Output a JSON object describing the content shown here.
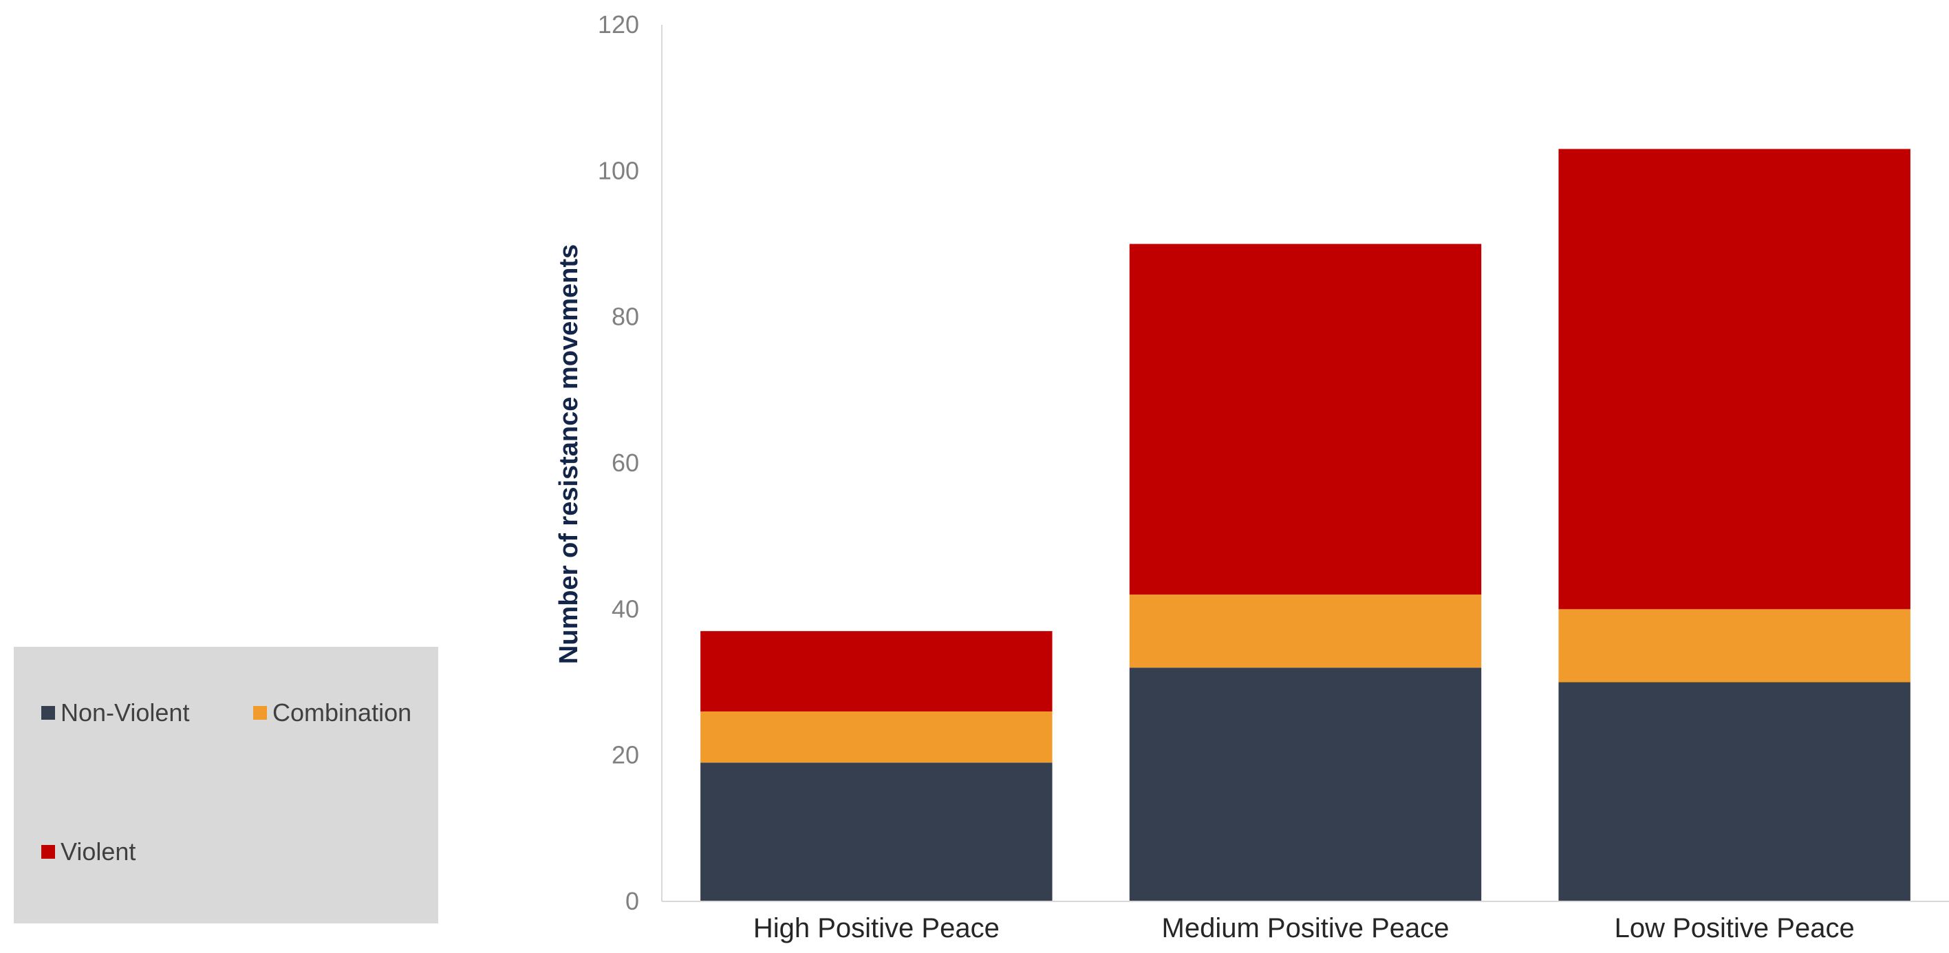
{
  "chart_data": {
    "type": "bar",
    "stacked": true,
    "categories": [
      "High Positive Peace",
      "Medium Positive Peace",
      "Low Positive Peace"
    ],
    "series": [
      {
        "name": "Non-Violent",
        "values": [
          19,
          32,
          30
        ],
        "color": "#353f4f"
      },
      {
        "name": "Combination",
        "values": [
          7,
          10,
          10
        ],
        "color": "#f09b2b"
      },
      {
        "name": "Violent",
        "values": [
          11,
          48,
          63
        ],
        "color": "#c00000"
      }
    ],
    "title": "",
    "xlabel": "",
    "ylabel": "Number of resistance movements",
    "ylim": [
      0,
      120
    ],
    "yticks": [
      0,
      20,
      40,
      60,
      80,
      100,
      120
    ],
    "grid": false,
    "legend_position": "bottom-left"
  }
}
